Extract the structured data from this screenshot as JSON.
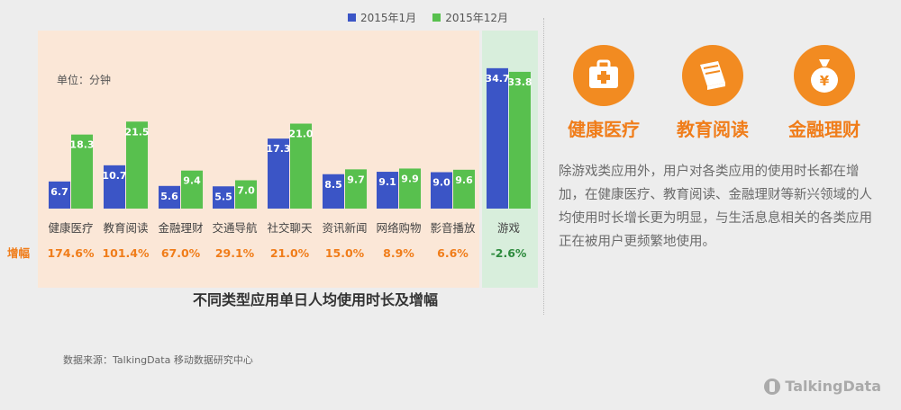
{
  "chart_data": {
    "type": "bar",
    "title": "不同类型应用单日人均使用时长及增幅",
    "unit_label": "单位：分钟",
    "categories": [
      "健康医疗",
      "教育阅读",
      "金融理财",
      "交通导航",
      "社交聊天",
      "资讯新闻",
      "网络购物",
      "影音播放",
      "游戏"
    ],
    "series": [
      {
        "name": "2015年1月",
        "values": [
          6.7,
          10.7,
          5.6,
          5.5,
          17.3,
          8.5,
          9.1,
          9.0,
          34.7
        ],
        "color": "#3b55c6"
      },
      {
        "name": "2015年12月",
        "values": [
          18.3,
          21.5,
          9.4,
          7.0,
          21.0,
          9.7,
          9.9,
          9.6,
          33.8
        ],
        "color": "#58c04e"
      }
    ],
    "growth_label": "增幅",
    "growth": [
      "174.6%",
      "101.4%",
      "67.0%",
      "29.1%",
      "21.0%",
      "15.0%",
      "8.9%",
      "6.6%",
      "-2.6%"
    ],
    "ylim": [
      0,
      40
    ],
    "legend_position": "top",
    "grid": false,
    "highlight_category": "游戏",
    "colors": {
      "orange_panel": "#fbe7d7",
      "green_panel": "#d8eedc",
      "label_orange": "#f07d1a",
      "label_green": "#2e8b3e"
    }
  },
  "source": "数据来源：TalkingData 移动数据研究中心",
  "side_panel": {
    "categories": [
      {
        "title": "健康医疗",
        "icon": "medical-kit-icon"
      },
      {
        "title": "教育阅读",
        "icon": "book-icon"
      },
      {
        "title": "金融理财",
        "icon": "money-bag-icon"
      }
    ],
    "description": "除游戏类应用外，用户对各类应用的使用时长都在增加，在健康医疗、教育阅读、金融理财等新兴领域的人均使用时长增长更为明显，与生活息息相关的各类应用正在被用户更频繁地使用。",
    "accent_color": "#f28b21"
  },
  "brand": "TalkingData"
}
